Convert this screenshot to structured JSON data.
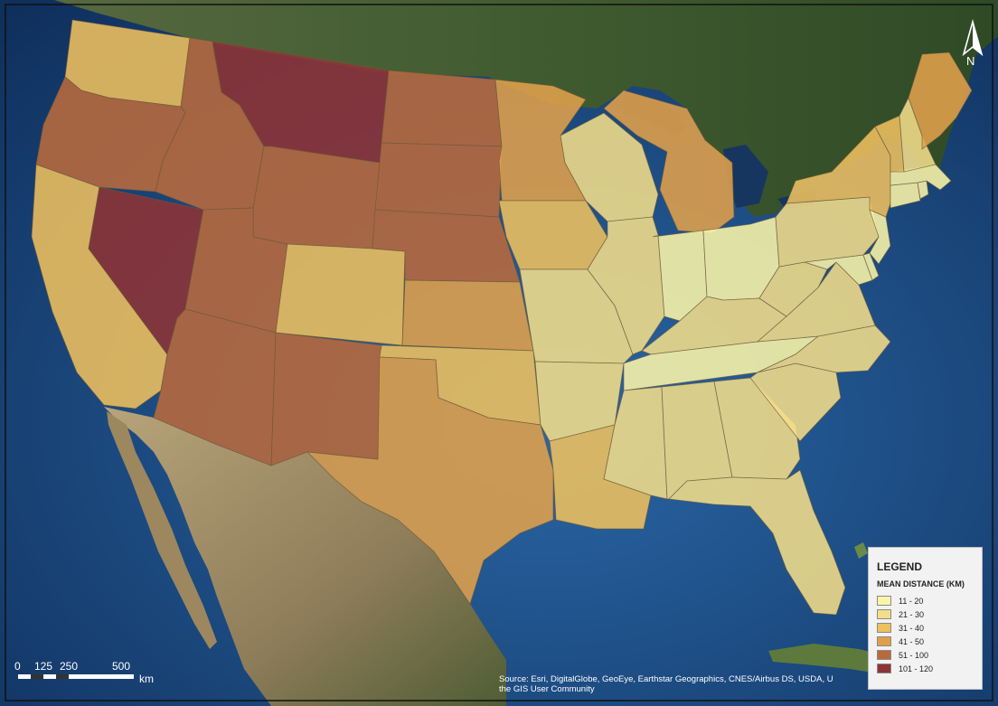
{
  "map": {
    "base_colors": {
      "ocean": "#1f4f86",
      "deep_ocean": "#0f2f5c",
      "land_canada": "#3f5a2f",
      "land_mexico": "#8f7d5a",
      "frame": "#111111"
    }
  },
  "legend": {
    "title": "LEGEND",
    "subtitle": "MEAN DISTANCE (KM)",
    "classes": [
      {
        "label": "11 - 20",
        "color": "#fbf5a8"
      },
      {
        "label": "21 - 30",
        "color": "#f2dd8a"
      },
      {
        "label": "31 - 40",
        "color": "#eec05e"
      },
      {
        "label": "41 - 50",
        "color": "#e0a04b"
      },
      {
        "label": "51 - 100",
        "color": "#b96a3c"
      },
      {
        "label": "101 - 120",
        "color": "#8e3336"
      }
    ]
  },
  "north_arrow": {
    "letter": "N"
  },
  "scale": {
    "labels": [
      "0",
      "125",
      "250",
      "500"
    ],
    "unit": "km"
  },
  "attribution": {
    "line1": "Source: Esri, DigitalGlobe, GeoEye, Earthstar Geographics, CNES/Airbus DS, USDA, U",
    "line2": "the GIS User Community"
  },
  "states": [
    {
      "name": "Washington",
      "class": "31 - 40"
    },
    {
      "name": "Oregon",
      "class": "51 - 100"
    },
    {
      "name": "California",
      "class": "31 - 40"
    },
    {
      "name": "Nevada",
      "class": "101 - 120"
    },
    {
      "name": "Idaho",
      "class": "51 - 100"
    },
    {
      "name": "Montana",
      "class": "101 - 120"
    },
    {
      "name": "Wyoming",
      "class": "51 - 100"
    },
    {
      "name": "Utah",
      "class": "51 - 100"
    },
    {
      "name": "Arizona",
      "class": "51 - 100"
    },
    {
      "name": "Colorado",
      "class": "31 - 40"
    },
    {
      "name": "New Mexico",
      "class": "51 - 100"
    },
    {
      "name": "North Dakota",
      "class": "51 - 100"
    },
    {
      "name": "South Dakota",
      "class": "51 - 100"
    },
    {
      "name": "Nebraska",
      "class": "51 - 100"
    },
    {
      "name": "Kansas",
      "class": "41 - 50"
    },
    {
      "name": "Oklahoma",
      "class": "31 - 40"
    },
    {
      "name": "Texas",
      "class": "41 - 50"
    },
    {
      "name": "Minnesota",
      "class": "41 - 50"
    },
    {
      "name": "Iowa",
      "class": "31 - 40"
    },
    {
      "name": "Missouri",
      "class": "21 - 30"
    },
    {
      "name": "Arkansas",
      "class": "21 - 30"
    },
    {
      "name": "Louisiana",
      "class": "31 - 40"
    },
    {
      "name": "Wisconsin",
      "class": "21 - 30"
    },
    {
      "name": "Michigan",
      "class": "41 - 50"
    },
    {
      "name": "Illinois",
      "class": "21 - 30"
    },
    {
      "name": "Indiana",
      "class": "11 - 20"
    },
    {
      "name": "Ohio",
      "class": "11 - 20"
    },
    {
      "name": "Kentucky",
      "class": "21 - 30"
    },
    {
      "name": "Tennessee",
      "class": "11 - 20"
    },
    {
      "name": "Mississippi",
      "class": "21 - 30"
    },
    {
      "name": "Alabama",
      "class": "21 - 30"
    },
    {
      "name": "Georgia",
      "class": "21 - 30"
    },
    {
      "name": "Florida",
      "class": "21 - 30"
    },
    {
      "name": "South Carolina",
      "class": "21 - 30"
    },
    {
      "name": "North Carolina",
      "class": "21 - 30"
    },
    {
      "name": "Virginia",
      "class": "21 - 30"
    },
    {
      "name": "West Virginia",
      "class": "21 - 30"
    },
    {
      "name": "Maryland",
      "class": "11 - 20"
    },
    {
      "name": "Delaware",
      "class": "11 - 20"
    },
    {
      "name": "Pennsylvania",
      "class": "21 - 30"
    },
    {
      "name": "New Jersey",
      "class": "11 - 20"
    },
    {
      "name": "New York",
      "class": "31 - 40"
    },
    {
      "name": "Connecticut",
      "class": "11 - 20"
    },
    {
      "name": "Rhode Island",
      "class": "11 - 20"
    },
    {
      "name": "Massachusetts",
      "class": "11 - 20"
    },
    {
      "name": "Vermont",
      "class": "31 - 40"
    },
    {
      "name": "New Hampshire",
      "class": "21 - 30"
    },
    {
      "name": "Maine",
      "class": "41 - 50"
    }
  ]
}
